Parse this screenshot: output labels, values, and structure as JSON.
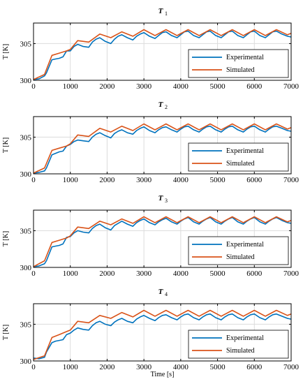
{
  "chart_data": [
    {
      "type": "line",
      "title": "T",
      "title_sub": "1",
      "ylabel": "T [K]",
      "xlabel": "",
      "xlim": [
        0,
        7000
      ],
      "ylim": [
        300,
        307.8
      ],
      "xticks": [
        "0",
        "1000",
        "2000",
        "3000",
        "4000",
        "5000",
        "6000",
        "7000"
      ],
      "yticks": [
        "300",
        "305"
      ],
      "grid": true,
      "legend_position": "bottom-right",
      "series": [
        {
          "name": "Experimental",
          "color": "#0072BD",
          "x": [
            0,
            150,
            300,
            350,
            500,
            600,
            700,
            800,
            900,
            1000,
            1100,
            1200,
            1350,
            1500,
            1600,
            1700,
            1800,
            1950,
            2100,
            2200,
            2300,
            2400,
            2550,
            2700,
            2800,
            2900,
            3000,
            3150,
            3300,
            3400,
            3500,
            3600,
            3750,
            3900,
            4000,
            4100,
            4200,
            4350,
            4500,
            4600,
            4700,
            4800,
            4950,
            5100,
            5200,
            5300,
            5400,
            5550,
            5700,
            5800,
            5900,
            6000,
            6150,
            6300,
            6400,
            6500,
            6600,
            6750,
            6900,
            7000
          ],
          "y": [
            300.1,
            300.2,
            300.6,
            301.0,
            302.8,
            302.9,
            303.0,
            303.2,
            304.0,
            304.0,
            304.6,
            304.9,
            304.6,
            304.5,
            305.2,
            305.6,
            305.8,
            305.3,
            305.0,
            305.6,
            306.0,
            306.2,
            305.8,
            305.5,
            306.0,
            306.3,
            306.5,
            306.0,
            305.7,
            306.1,
            306.5,
            306.6,
            306.1,
            305.8,
            306.2,
            306.6,
            306.7,
            306.1,
            305.8,
            306.2,
            306.6,
            306.7,
            306.1,
            305.8,
            306.2,
            306.6,
            306.7,
            306.1,
            305.8,
            306.2,
            306.6,
            306.7,
            306.1,
            305.8,
            306.2,
            306.6,
            306.7,
            306.3,
            306.0,
            305.9
          ]
        },
        {
          "name": "Simulated",
          "color": "#D95319",
          "x": [
            0,
            300,
            500,
            700,
            900,
            1000,
            1200,
            1500,
            1800,
            2100,
            2400,
            2700,
            3000,
            3300,
            3600,
            3900,
            4200,
            4500,
            4800,
            5100,
            5400,
            5700,
            6000,
            6300,
            6600,
            6900,
            7000
          ],
          "y": [
            300.1,
            300.8,
            303.4,
            303.7,
            304.0,
            304.2,
            305.4,
            305.2,
            306.3,
            305.8,
            306.6,
            306.0,
            306.9,
            306.1,
            306.9,
            306.1,
            306.9,
            306.1,
            306.9,
            306.1,
            306.9,
            306.1,
            306.9,
            306.1,
            306.9,
            306.2,
            306.4
          ]
        }
      ]
    },
    {
      "type": "line",
      "title": "T",
      "title_sub": "2",
      "ylabel": "T [K]",
      "xlabel": "",
      "xlim": [
        0,
        7000
      ],
      "ylim": [
        300,
        307.8
      ],
      "xticks": [
        "0",
        "1000",
        "2000",
        "3000",
        "4000",
        "5000",
        "6000",
        "7000"
      ],
      "yticks": [
        "300",
        "305"
      ],
      "grid": true,
      "legend_position": "bottom-right",
      "series": [
        {
          "name": "Experimental",
          "color": "#0072BD",
          "x": [
            0,
            150,
            300,
            350,
            500,
            600,
            700,
            800,
            900,
            1000,
            1100,
            1200,
            1350,
            1500,
            1600,
            1700,
            1800,
            1950,
            2100,
            2200,
            2300,
            2400,
            2550,
            2700,
            2800,
            2900,
            3000,
            3150,
            3300,
            3400,
            3500,
            3600,
            3750,
            3900,
            4000,
            4100,
            4200,
            4350,
            4500,
            4600,
            4700,
            4800,
            4950,
            5100,
            5200,
            5300,
            5400,
            5550,
            5700,
            5800,
            5900,
            6000,
            6150,
            6300,
            6400,
            6500,
            6600,
            6750,
            6900,
            7000
          ],
          "y": [
            300.1,
            300.2,
            300.4,
            300.8,
            302.6,
            302.8,
            303.0,
            303.1,
            303.8,
            304.0,
            304.4,
            304.6,
            304.5,
            304.4,
            305.0,
            305.4,
            305.6,
            305.2,
            304.9,
            305.5,
            305.8,
            306.0,
            305.6,
            305.4,
            305.9,
            306.2,
            306.4,
            305.9,
            305.6,
            306.0,
            306.3,
            306.4,
            306.0,
            305.7,
            306.1,
            306.4,
            306.5,
            306.0,
            305.7,
            306.1,
            306.4,
            306.5,
            306.0,
            305.7,
            306.1,
            306.4,
            306.5,
            306.0,
            305.7,
            306.1,
            306.4,
            306.5,
            306.0,
            305.7,
            306.1,
            306.4,
            306.5,
            306.2,
            305.9,
            305.8
          ]
        },
        {
          "name": "Simulated",
          "color": "#D95319",
          "x": [
            0,
            300,
            500,
            700,
            900,
            1000,
            1200,
            1500,
            1800,
            2100,
            2400,
            2700,
            3000,
            3300,
            3600,
            3900,
            4200,
            4500,
            4800,
            5100,
            5400,
            5700,
            6000,
            6300,
            6600,
            6900,
            7000
          ],
          "y": [
            300.1,
            300.8,
            303.2,
            303.5,
            303.8,
            304.1,
            305.3,
            305.1,
            306.2,
            305.7,
            306.5,
            305.9,
            306.8,
            306.0,
            306.8,
            306.0,
            306.8,
            306.0,
            306.8,
            306.0,
            306.8,
            306.0,
            306.8,
            306.0,
            306.8,
            306.1,
            306.3
          ]
        }
      ]
    },
    {
      "type": "line",
      "title": "T",
      "title_sub": "3",
      "ylabel": "T [K]",
      "xlabel": "",
      "xlim": [
        0,
        7000
      ],
      "ylim": [
        300,
        307.8
      ],
      "xticks": [
        "0",
        "1000",
        "2000",
        "3000",
        "4000",
        "5000",
        "6000",
        "7000"
      ],
      "yticks": [
        "300",
        "305"
      ],
      "grid": true,
      "legend_position": "bottom-right",
      "series": [
        {
          "name": "Experimental",
          "color": "#0072BD",
          "x": [
            0,
            150,
            300,
            350,
            500,
            600,
            700,
            800,
            900,
            1000,
            1100,
            1200,
            1350,
            1500,
            1600,
            1700,
            1800,
            1950,
            2100,
            2200,
            2300,
            2400,
            2550,
            2700,
            2800,
            2900,
            3000,
            3150,
            3300,
            3400,
            3500,
            3600,
            3750,
            3900,
            4000,
            4100,
            4200,
            4350,
            4500,
            4600,
            4700,
            4800,
            4950,
            5100,
            5200,
            5300,
            5400,
            5550,
            5700,
            5800,
            5900,
            6000,
            6150,
            6300,
            6400,
            6500,
            6600,
            6750,
            6900,
            7000
          ],
          "y": [
            300.1,
            300.2,
            300.5,
            300.9,
            302.8,
            302.9,
            303.0,
            303.2,
            304.1,
            304.2,
            304.7,
            305.0,
            304.8,
            304.7,
            305.3,
            305.7,
            305.9,
            305.4,
            305.1,
            305.7,
            306.0,
            306.3,
            305.9,
            305.6,
            306.1,
            306.4,
            306.6,
            306.1,
            305.8,
            306.2,
            306.5,
            306.7,
            306.2,
            305.9,
            306.3,
            306.6,
            306.8,
            306.2,
            305.9,
            306.3,
            306.6,
            306.8,
            306.2,
            305.9,
            306.3,
            306.6,
            306.8,
            306.2,
            305.9,
            306.3,
            306.6,
            306.8,
            306.2,
            305.9,
            306.3,
            306.6,
            306.8,
            306.4,
            306.1,
            306.0
          ]
        },
        {
          "name": "Simulated",
          "color": "#D95319",
          "x": [
            0,
            300,
            500,
            700,
            900,
            1000,
            1200,
            1500,
            1800,
            2100,
            2400,
            2700,
            3000,
            3300,
            3600,
            3900,
            4200,
            4500,
            4800,
            5100,
            5400,
            5700,
            6000,
            6300,
            6600,
            6900,
            7000
          ],
          "y": [
            300.1,
            300.9,
            303.4,
            303.7,
            304.0,
            304.3,
            305.5,
            305.3,
            306.3,
            305.8,
            306.6,
            306.0,
            306.9,
            306.1,
            306.9,
            306.1,
            306.9,
            306.1,
            306.9,
            306.1,
            306.9,
            306.1,
            306.9,
            306.1,
            306.9,
            306.2,
            306.4
          ]
        }
      ]
    },
    {
      "type": "line",
      "title": "T",
      "title_sub": "4",
      "ylabel": "T [K]",
      "xlabel": "Time [s]",
      "xlim": [
        0,
        7000
      ],
      "ylim": [
        300,
        307.8
      ],
      "xticks": [
        "0",
        "1000",
        "2000",
        "3000",
        "4000",
        "5000",
        "6000",
        "7000"
      ],
      "yticks": [
        "300",
        "305"
      ],
      "grid": true,
      "legend_position": "bottom-right",
      "series": [
        {
          "name": "Experimental",
          "color": "#0072BD",
          "x": [
            0,
            150,
            300,
            350,
            500,
            600,
            700,
            800,
            900,
            1000,
            1100,
            1200,
            1350,
            1500,
            1600,
            1700,
            1800,
            1950,
            2100,
            2200,
            2300,
            2400,
            2550,
            2700,
            2800,
            2900,
            3000,
            3150,
            3300,
            3400,
            3500,
            3600,
            3750,
            3900,
            4000,
            4100,
            4200,
            4350,
            4500,
            4600,
            4700,
            4800,
            4950,
            5100,
            5200,
            5300,
            5400,
            5550,
            5700,
            5800,
            5900,
            6000,
            6150,
            6300,
            6400,
            6500,
            6600,
            6750,
            6900,
            7000
          ],
          "y": [
            300.4,
            300.3,
            300.5,
            301.2,
            302.5,
            302.7,
            302.8,
            302.9,
            303.6,
            303.8,
            304.2,
            304.5,
            304.3,
            304.2,
            304.8,
            305.2,
            305.4,
            305.0,
            304.8,
            305.3,
            305.6,
            305.8,
            305.4,
            305.2,
            305.7,
            306.0,
            306.2,
            305.8,
            305.5,
            305.9,
            306.2,
            306.3,
            305.9,
            305.6,
            306.0,
            306.3,
            306.4,
            305.9,
            305.6,
            306.0,
            306.3,
            306.4,
            305.9,
            305.6,
            306.0,
            306.3,
            306.4,
            305.9,
            305.6,
            306.0,
            306.3,
            306.4,
            305.9,
            305.6,
            306.0,
            306.3,
            306.4,
            306.1,
            305.8,
            305.7
          ]
        },
        {
          "name": "Simulated",
          "color": "#D95319",
          "x": [
            0,
            300,
            500,
            700,
            900,
            1000,
            1200,
            1500,
            1800,
            2100,
            2400,
            2700,
            3000,
            3300,
            3600,
            3900,
            4200,
            4500,
            4800,
            5100,
            5400,
            5700,
            6000,
            6300,
            6600,
            6900,
            7000
          ],
          "y": [
            300.2,
            300.7,
            303.2,
            303.6,
            304.0,
            304.2,
            305.4,
            305.2,
            306.2,
            305.8,
            306.6,
            306.0,
            306.9,
            306.1,
            306.9,
            306.1,
            306.9,
            306.1,
            306.9,
            306.1,
            306.9,
            306.1,
            306.9,
            306.1,
            306.9,
            306.2,
            306.4
          ]
        }
      ]
    }
  ]
}
